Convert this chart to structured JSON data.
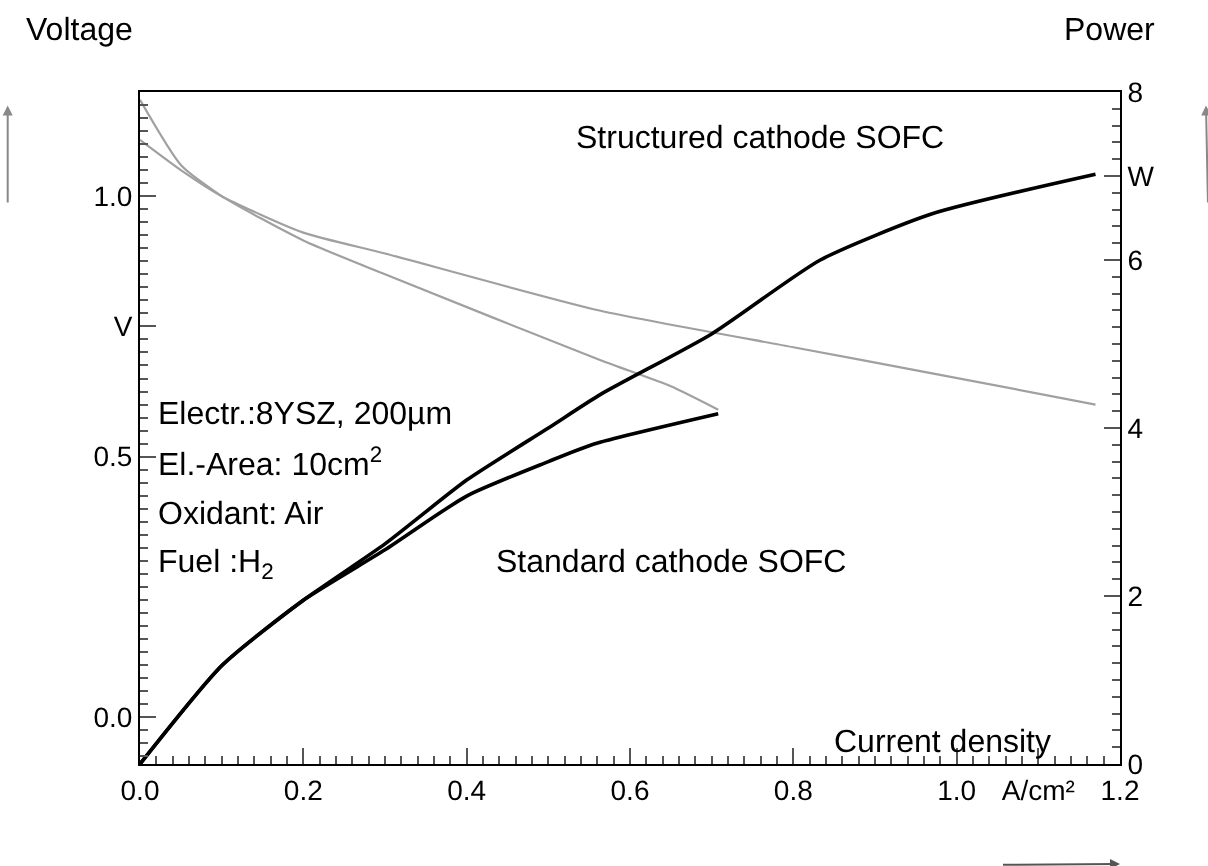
{
  "chart_data": {
    "type": "line",
    "xlabel": "Current density",
    "ylabel": "Voltage",
    "y2label": "Power",
    "series": [
      {
        "color": "#000000",
        "axis": "y2",
        "x": [
          0,
          0.1,
          0.2,
          0.3,
          0.4,
          0.5,
          0.564,
          0.7,
          0.833,
          0.97,
          1.17
        ],
        "values": [
          0,
          1.17,
          1.95,
          2.62,
          3.38,
          4.0,
          4.4,
          5.12,
          6.0,
          6.55,
          7.02
        ]
      },
      {
        "color": "#000000",
        "axis": "y2",
        "x": [
          0,
          0.1,
          0.2,
          0.3,
          0.4,
          0.5,
          0.556,
          0.708
        ],
        "values": [
          0,
          1.17,
          1.95,
          2.55,
          3.19,
          3.6,
          3.81,
          4.17
        ]
      },
      {
        "color": "#a0a0a0",
        "axis": "y",
        "x": [
          0,
          0.05,
          0.1,
          0.2,
          0.3,
          0.564,
          0.8,
          0.97,
          1.17
        ],
        "values": [
          1.108,
          1.05,
          1.0,
          0.93,
          0.89,
          0.78,
          0.71,
          0.66,
          0.6
        ]
      },
      {
        "color": "#a0a0a0",
        "axis": "y",
        "x": [
          0,
          0.05,
          0.1,
          0.2,
          0.3,
          0.564,
          0.65,
          0.708
        ],
        "values": [
          1.185,
          1.06,
          1.0,
          0.915,
          0.85,
          0.685,
          0.635,
          0.59
        ]
      }
    ],
    "xlim": [
      0,
      1.2
    ],
    "xticks": [
      {
        "value": 0,
        "label": "0.0"
      },
      {
        "value": 0.2,
        "label": "0.2"
      },
      {
        "value": 0.4,
        "label": "0.4"
      },
      {
        "value": 0.6,
        "label": "0.6"
      },
      {
        "value": 0.8,
        "label": "0.8"
      },
      {
        "value": 1.0,
        "label": "1.0"
      },
      {
        "value": 1.1,
        "label": "A/cm²"
      },
      {
        "value": 1.2,
        "label": "1.2"
      }
    ],
    "ylim": [
      -0.09,
      1.2
    ],
    "yticks": [
      {
        "value": 0,
        "label": "0.0"
      },
      {
        "value": 0.5,
        "label": "0.5"
      },
      {
        "value": 0.75,
        "label": "V"
      },
      {
        "value": 1.0,
        "label": "1.0"
      }
    ],
    "y2lim": [
      0,
      8
    ],
    "y2ticks": [
      0,
      2,
      4,
      6,
      {
        "value": 7,
        "label": "W"
      },
      8
    ],
    "annotations": [
      "Structured cathode SOFC",
      "Standard cathode SOFC",
      "Electr.:8YSZ, 200µm",
      "El.-Area: 10cm$^{2}$",
      "Oxidant: Air",
      "Fuel :H$_{2}$"
    ],
    "legend": false,
    "line_style": "solid",
    "marker": "none"
  }
}
